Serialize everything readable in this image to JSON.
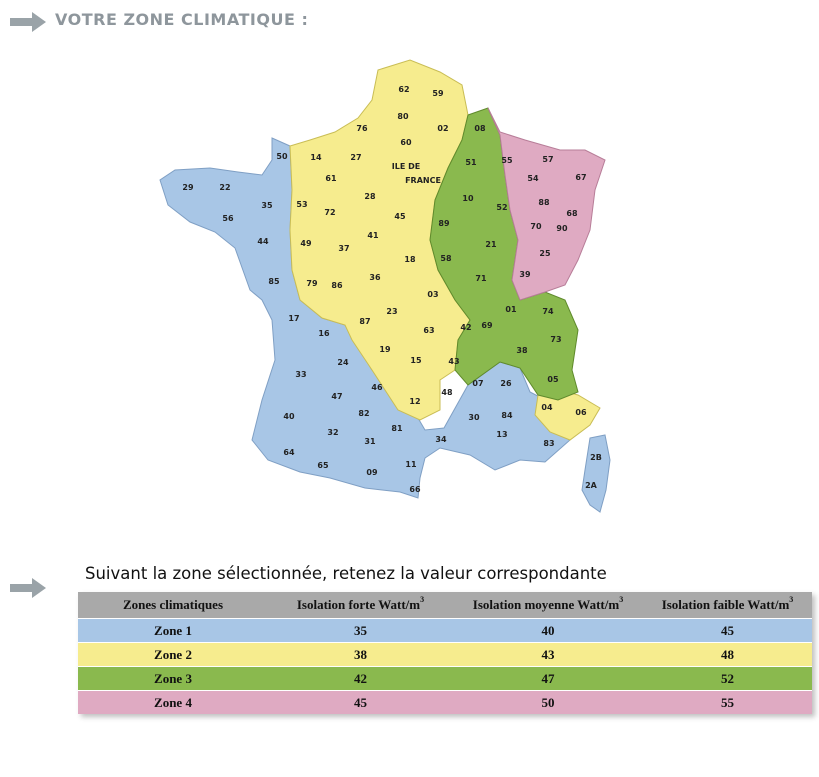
{
  "header": {
    "title": "VOTRE ZONE CLIMATIQUE :"
  },
  "arrow_color": "#9aa3a8",
  "zone_colors": {
    "zone1": "#a8c6e6",
    "zone2": "#f6ec8e",
    "zone3": "#8ab94e",
    "zone4": "#dfaac2"
  },
  "map": {
    "labels": [
      "62",
      "59",
      "80",
      "02",
      "76",
      "60",
      "08",
      "50",
      "14",
      "27",
      "ILE DE",
      "FRANCE",
      "51",
      "55",
      "57",
      "67",
      "29",
      "22",
      "61",
      "28",
      "10",
      "54",
      "35",
      "53",
      "72",
      "45",
      "52",
      "88",
      "68",
      "56",
      "44",
      "41",
      "89",
      "70",
      "90",
      "49",
      "37",
      "18",
      "58",
      "21",
      "25",
      "85",
      "79",
      "86",
      "36",
      "71",
      "39",
      "17",
      "03",
      "16",
      "87",
      "23",
      "63",
      "42",
      "69",
      "01",
      "74",
      "24",
      "19",
      "73",
      "33",
      "15",
      "43",
      "38",
      "47",
      "46",
      "07",
      "26",
      "05",
      "40",
      "82",
      "12",
      "48",
      "04",
      "06",
      "30",
      "84",
      "32",
      "81",
      "34",
      "13",
      "83",
      "2B",
      "64",
      "65",
      "31",
      "11",
      "09",
      "66",
      "2A"
    ]
  },
  "instruction": "Suivant la zone sélectionnée, retenez la valeur correspondante",
  "table": {
    "headers": {
      "zones": "Zones climatiques",
      "forte": "Isolation forte Watt/m",
      "moyenne": "Isolation moyenne Watt/m",
      "faible": "Isolation faible Watt/m",
      "exp": "3"
    },
    "rows": [
      {
        "zone": "Zone 1",
        "forte": "35",
        "moyenne": "40",
        "faible": "45",
        "color": "#a8c6e6"
      },
      {
        "zone": "Zone 2",
        "forte": "38",
        "moyenne": "43",
        "faible": "48",
        "color": "#f6ec8e"
      },
      {
        "zone": "Zone 3",
        "forte": "42",
        "moyenne": "47",
        "faible": "52",
        "color": "#8ab94e"
      },
      {
        "zone": "Zone 4",
        "forte": "45",
        "moyenne": "50",
        "faible": "55",
        "color": "#dfaac2"
      }
    ]
  }
}
